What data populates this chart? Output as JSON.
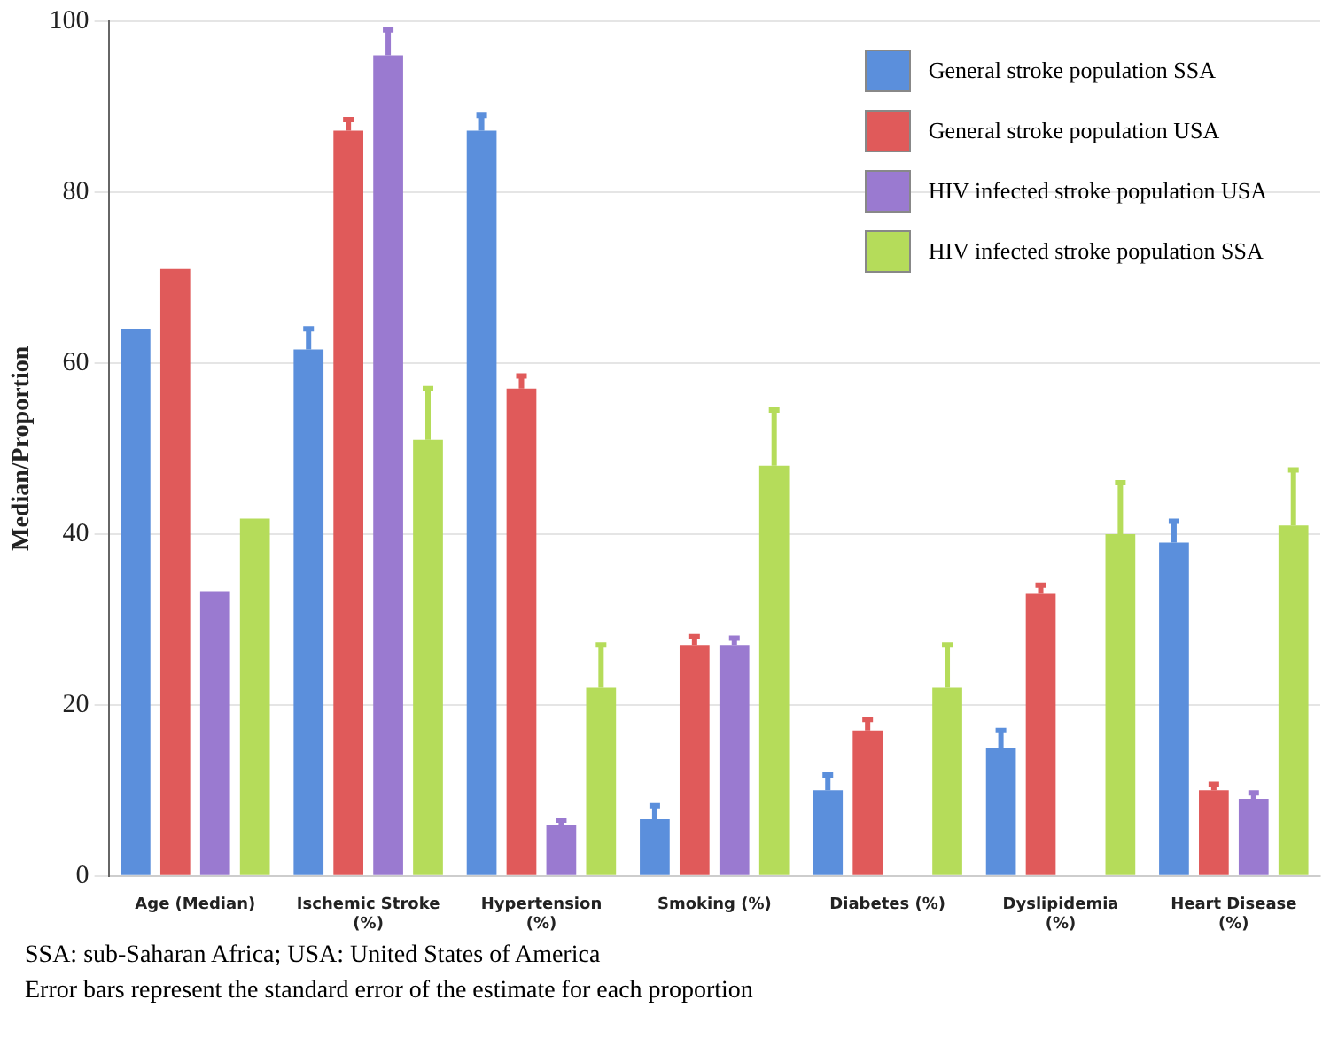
{
  "chart_data": {
    "type": "bar",
    "categories": [
      "Age (Median)",
      "Ischemic Stroke (%)",
      "Hypertension (%)",
      "Smoking (%)",
      "Diabetes (%)",
      "Dyslipidemia (%)",
      "Heart Disease (%)"
    ],
    "series": [
      {
        "name": "General stroke population SSA",
        "color": "#5b8fdc",
        "values": [
          64,
          61.6,
          87.2,
          6.6,
          10,
          15,
          39
        ],
        "errors": [
          null,
          [
            61.6,
            64
          ],
          [
            87.2,
            89
          ],
          [
            6.6,
            8.2
          ],
          [
            10,
            11.8
          ],
          [
            15,
            17
          ],
          [
            39,
            41.5
          ]
        ]
      },
      {
        "name": "General stroke population USA",
        "color": "#e05a5a",
        "values": [
          71,
          87.2,
          57,
          27,
          17,
          33,
          10
        ],
        "errors": [
          null,
          [
            87.2,
            88.5
          ],
          [
            57,
            58.5
          ],
          [
            27,
            28
          ],
          [
            17,
            18.3
          ],
          [
            33,
            34
          ],
          [
            10,
            10.7
          ]
        ]
      },
      {
        "name": "HIV infected stroke population USA",
        "color": "#9a7ad0",
        "values": [
          33.3,
          96,
          6,
          27,
          0,
          0,
          9
        ],
        "errors": [
          null,
          [
            96,
            99
          ],
          [
            6,
            6.5
          ],
          [
            27,
            27.8
          ],
          null,
          null,
          [
            9,
            9.7
          ]
        ]
      },
      {
        "name": "HIV infected stroke population SSA",
        "color": "#b5dc5a",
        "values": [
          41.8,
          51,
          22,
          48,
          22,
          40,
          41
        ],
        "errors": [
          null,
          [
            51,
            57
          ],
          [
            22,
            27
          ],
          [
            48,
            54.5
          ],
          [
            22,
            27
          ],
          [
            40,
            46
          ],
          [
            41,
            47.5
          ]
        ]
      }
    ],
    "ylabel": "Median/Proportion",
    "ylim": [
      0,
      100
    ],
    "yticks": [
      0,
      20,
      40,
      60,
      80,
      100
    ],
    "grid": "y",
    "legend": "top right",
    "annotations": [
      "SSA: sub-Saharan Africa; USA: United States of America",
      "Error bars represent the standard error of the estimate for each proportion"
    ]
  }
}
